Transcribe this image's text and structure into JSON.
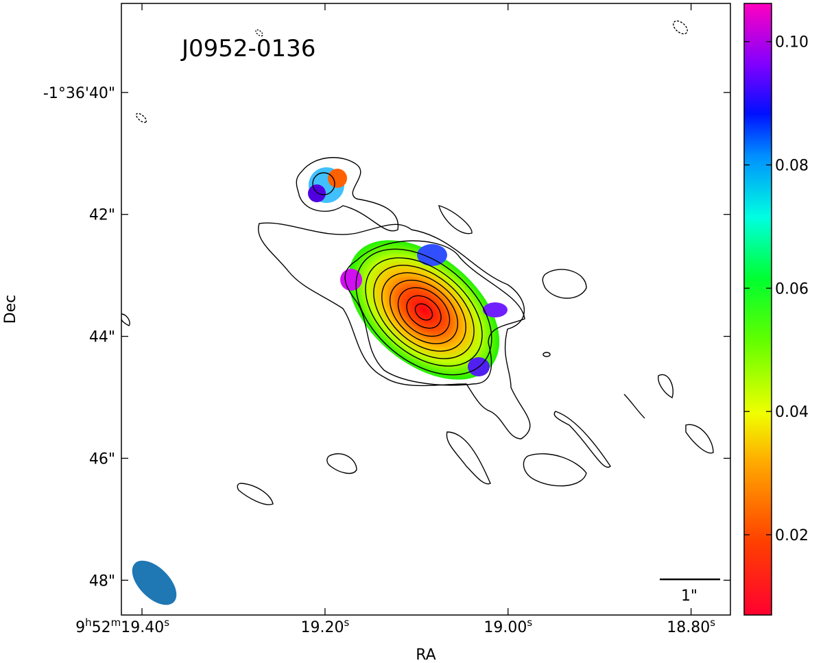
{
  "chart_data": {
    "type": "image",
    "title": "J0952-0136",
    "x_label": "RA",
    "y_label": "Dec",
    "xlim": [
      19.4225,
      18.757
    ],
    "xticks": [
      {
        "value": 19.4,
        "label": [
          "9",
          "h",
          "52",
          "m",
          "19.40",
          "s"
        ]
      },
      {
        "value": 19.2,
        "label": [
          "19.20",
          "s"
        ]
      },
      {
        "value": 19.0,
        "label": [
          "19.00",
          "s"
        ]
      },
      {
        "value": 18.8,
        "label": [
          "18.80",
          "s"
        ]
      }
    ],
    "ylim": [
      38.54,
      48.57
    ],
    "yticks": [
      {
        "value": 40,
        "label": "-1°36'40\""
      },
      {
        "value": 42,
        "label": "42\""
      },
      {
        "value": 44,
        "label": "44\""
      },
      {
        "value": 46,
        "label": "46\""
      },
      {
        "value": 48,
        "label": "48\""
      }
    ],
    "colorbar": {
      "lim": [
        0.00698,
        0.1062
      ],
      "ticks": [
        0.02,
        0.04,
        0.06,
        0.08,
        {
          "value": 0.1,
          "label": "0.10"
        }
      ]
    },
    "scale_bar_label": "1\""
  }
}
